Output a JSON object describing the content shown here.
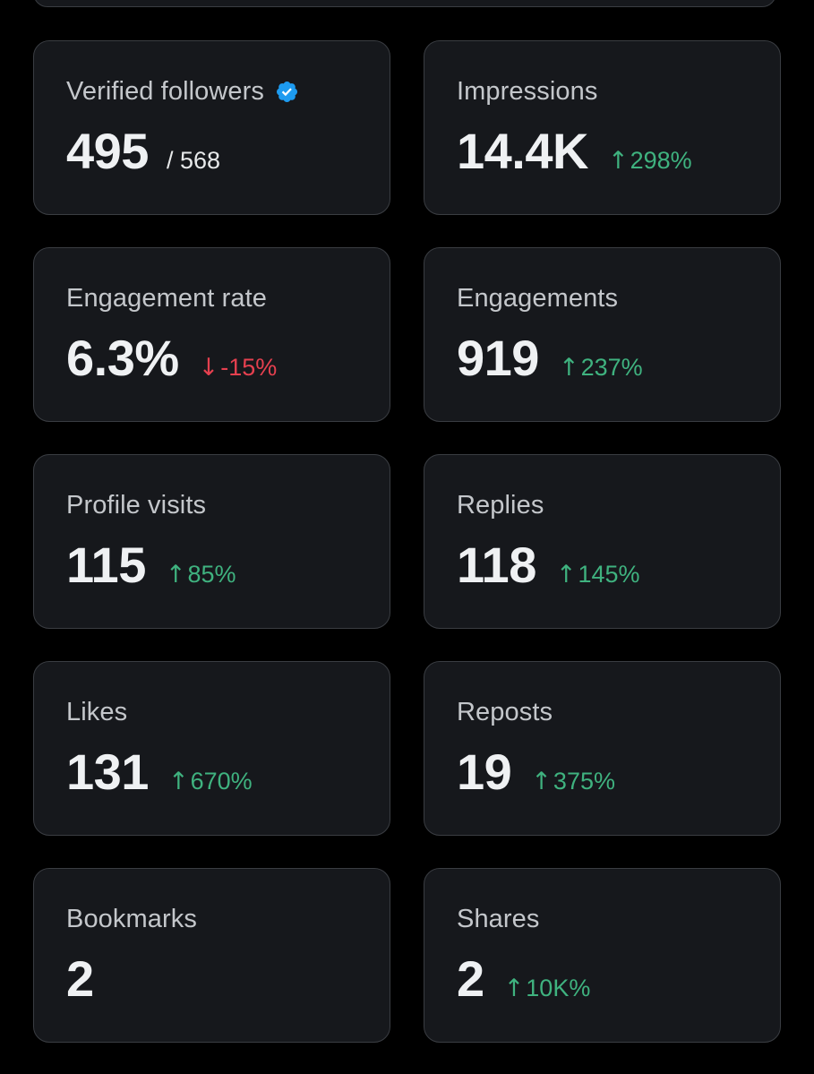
{
  "colors": {
    "background": "#000000",
    "card": "#16181c",
    "card_border": "#3a3d42",
    "positive": "#3fb27f",
    "negative": "#e5404f",
    "verified": "#1d9bf0"
  },
  "metrics": [
    {
      "label": "Verified followers",
      "value": "495",
      "sub": "/ 568",
      "icon": "verified-badge-icon"
    },
    {
      "label": "Impressions",
      "value": "14.4K",
      "change": "298%",
      "direction": "up"
    },
    {
      "label": "Engagement rate",
      "value": "6.3%",
      "change": "-15%",
      "direction": "down"
    },
    {
      "label": "Engagements",
      "value": "919",
      "change": "237%",
      "direction": "up"
    },
    {
      "label": "Profile visits",
      "value": "115",
      "change": "85%",
      "direction": "up"
    },
    {
      "label": "Replies",
      "value": "118",
      "change": "145%",
      "direction": "up"
    },
    {
      "label": "Likes",
      "value": "131",
      "change": "670%",
      "direction": "up"
    },
    {
      "label": "Reposts",
      "value": "19",
      "change": "375%",
      "direction": "up"
    },
    {
      "label": "Bookmarks",
      "value": "2"
    },
    {
      "label": "Shares",
      "value": "2",
      "change": "10K%",
      "direction": "up"
    }
  ]
}
